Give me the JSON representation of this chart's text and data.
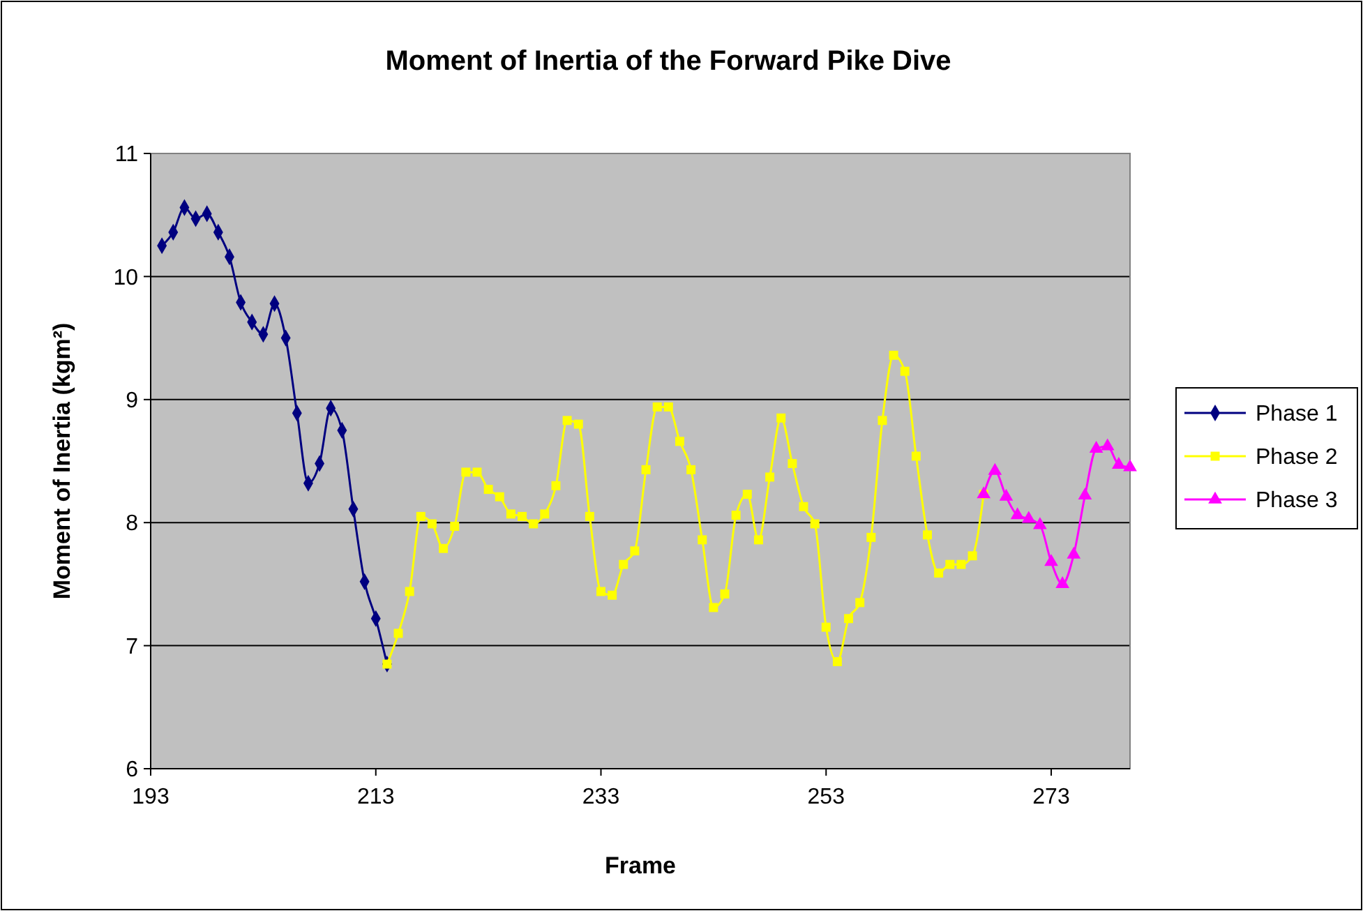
{
  "chart_data": {
    "type": "line",
    "title": "Moment of Inertia of the Forward Pike Dive",
    "xlabel": "Frame",
    "ylabel": "Moment of Inertia (kgm²)",
    "xlim": [
      193,
      280
    ],
    "xticks": [
      193,
      213,
      233,
      253,
      273
    ],
    "ylim": [
      6,
      11
    ],
    "yticks": [
      6,
      7,
      8,
      9,
      10,
      11
    ],
    "grid": "y",
    "legend": "right",
    "line_style": "solid",
    "series": [
      {
        "name": "Phase 1",
        "color": "#000080",
        "marker": "diamond",
        "x": [
          194,
          195,
          196,
          197,
          198,
          199,
          200,
          201,
          202,
          203,
          204,
          205,
          206,
          207,
          208,
          209,
          210,
          211,
          212,
          213,
          214
        ],
        "values": [
          10.25,
          10.36,
          10.56,
          10.47,
          10.51,
          10.36,
          10.16,
          9.79,
          9.63,
          9.53,
          9.78,
          9.5,
          8.89,
          8.32,
          8.48,
          8.93,
          8.75,
          8.11,
          7.52,
          7.22,
          6.85
        ]
      },
      {
        "name": "Phase 2",
        "color": "#ffff00",
        "marker": "square",
        "x": [
          214,
          215,
          216,
          217,
          218,
          219,
          220,
          221,
          222,
          223,
          224,
          225,
          226,
          227,
          228,
          229,
          230,
          231,
          232,
          233,
          234,
          235,
          236,
          237,
          238,
          239,
          240,
          241,
          242,
          243,
          244,
          245,
          246,
          247,
          248,
          249,
          250,
          251,
          252,
          253,
          254,
          255,
          256,
          257,
          258,
          259,
          260,
          261,
          262,
          263,
          264,
          265,
          266,
          267
        ],
        "values": [
          6.85,
          7.1,
          7.44,
          8.05,
          7.99,
          7.79,
          7.97,
          8.41,
          8.41,
          8.27,
          8.21,
          8.07,
          8.05,
          7.99,
          8.07,
          8.3,
          8.83,
          8.8,
          8.05,
          7.44,
          7.41,
          7.66,
          7.77,
          8.43,
          8.94,
          8.94,
          8.66,
          8.43,
          7.86,
          7.31,
          7.42,
          8.06,
          8.23,
          7.86,
          8.37,
          8.85,
          8.48,
          8.13,
          7.99,
          7.15,
          6.87,
          7.22,
          7.35,
          7.88,
          8.83,
          9.36,
          9.23,
          8.54,
          7.9,
          7.59,
          7.66,
          7.66,
          7.73,
          8.23
        ]
      },
      {
        "name": "Phase 3",
        "color": "#ff00ff",
        "marker": "triangle",
        "x": [
          267,
          268,
          269,
          270,
          271,
          272,
          273,
          274,
          275,
          276,
          277,
          278,
          279,
          280
        ],
        "values": [
          8.23,
          8.42,
          8.21,
          8.06,
          8.03,
          7.98,
          7.68,
          7.5,
          7.74,
          8.22,
          8.6,
          8.62,
          8.47,
          8.45
        ]
      }
    ]
  }
}
